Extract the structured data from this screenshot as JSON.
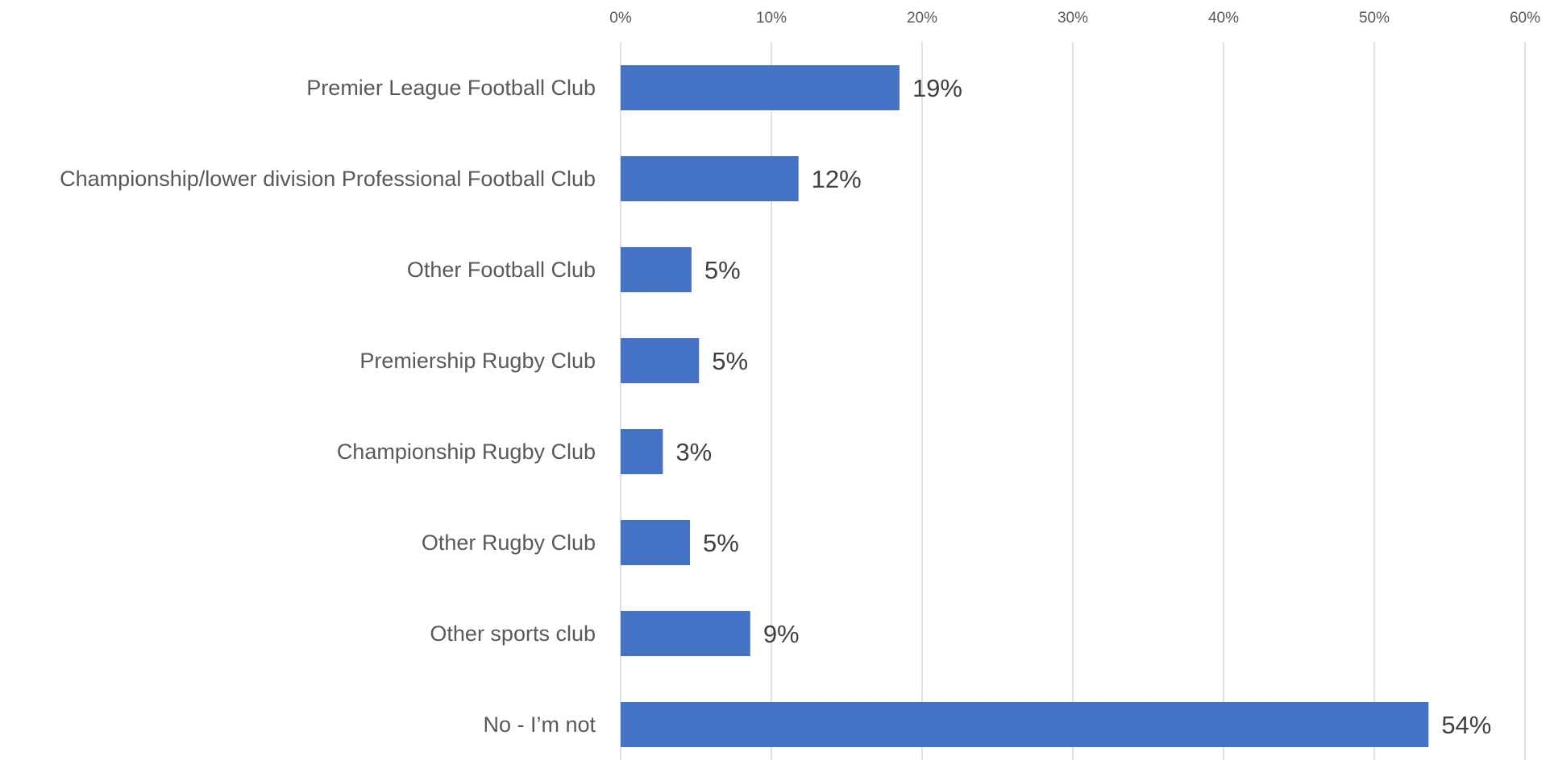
{
  "chart_data": {
    "type": "bar",
    "orientation": "horizontal",
    "categories": [
      "Premier League Football Club",
      "Championship/lower division Professional Football Club",
      "Other Football Club",
      "Premiership Rugby Club",
      "Championship Rugby Club",
      "Other Rugby Club",
      "Other sports club",
      "No - I’m not"
    ],
    "values": [
      18.5,
      11.8,
      4.7,
      5.2,
      2.8,
      4.6,
      8.6,
      53.6
    ],
    "data_labels": [
      "19%",
      "12%",
      "5%",
      "5%",
      "3%",
      "5%",
      "9%",
      "54%"
    ],
    "xlim": [
      0,
      60
    ],
    "ticks": [
      0,
      10,
      20,
      30,
      40,
      50,
      60
    ],
    "tick_labels": [
      "0%",
      "10%",
      "20%",
      "30%",
      "40%",
      "50%",
      "60%"
    ],
    "axis_position": "top",
    "grid": true,
    "title": "",
    "xlabel": "",
    "ylabel": "",
    "legend": "none",
    "colors": {
      "bar": "#4472C4",
      "grid": "#D9D9D9",
      "category_text": "#595959",
      "data_label_text": "#404040",
      "tick_text": "#595959"
    }
  }
}
